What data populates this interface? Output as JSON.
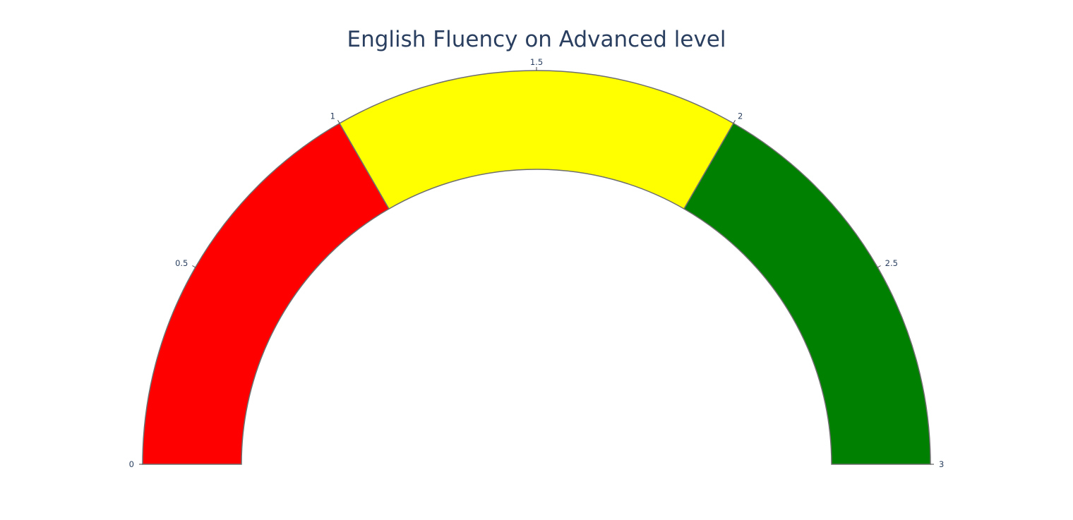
{
  "chart_data": {
    "type": "gauge",
    "title": "English Fluency on Advanced level",
    "axis": {
      "range": [
        0,
        3
      ],
      "ticks": [
        0,
        0.5,
        1,
        1.5,
        2,
        2.5,
        3
      ],
      "tick_labels": [
        "0",
        "0.5",
        "1",
        "1.5",
        "2",
        "2.5",
        "3"
      ]
    },
    "steps": [
      {
        "range": [
          0,
          1
        ],
        "color": "#ff0000"
      },
      {
        "range": [
          1,
          2
        ],
        "color": "#ffff00"
      },
      {
        "range": [
          2,
          3
        ],
        "color": "#008000"
      }
    ],
    "border_color": "#6e6e6e",
    "text_color": "#2a3f5f"
  }
}
